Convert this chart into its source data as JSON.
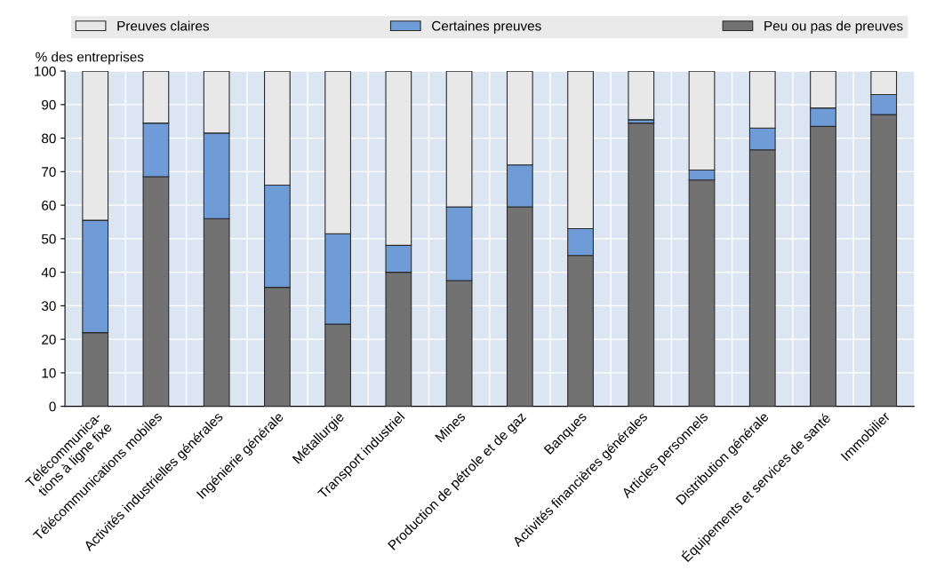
{
  "chart_data": {
    "type": "bar",
    "stacked": true,
    "ylabel": "% des entreprises",
    "categories": [
      "Télécommunica-\ntions à ligne fixe",
      "Télécommunications mobiles",
      "Activités industrielles générales",
      "Ingénierie générale",
      "Métallurgie",
      "Transport industriel",
      "Mines",
      "Production de pétrole et de gaz",
      "Banques",
      "Activités financières générales",
      "Articles personnels",
      "Distribution générale",
      "Équipements et services de santé",
      "Immobilier"
    ],
    "series": [
      {
        "name": "Peu ou pas de preuves",
        "color": "#727272",
        "values": [
          22,
          68.5,
          56,
          35.5,
          24.5,
          40,
          37.5,
          59.5,
          45,
          84.5,
          67.5,
          76.5,
          83.5,
          87
        ]
      },
      {
        "name": "Certaines preuves",
        "color": "#6f9bd6",
        "values": [
          33.5,
          16,
          25.5,
          30.5,
          27,
          8,
          22,
          12.5,
          8,
          1,
          3,
          6.5,
          5.5,
          6
        ]
      },
      {
        "name": "Preuves claires",
        "color": "#e8e8e8",
        "values": [
          44.5,
          15.5,
          18.5,
          34,
          48.5,
          52,
          40.5,
          28,
          47,
          14.5,
          29.5,
          17,
          11,
          7
        ]
      }
    ],
    "ylim": [
      0,
      100
    ],
    "yticks": [
      0,
      10,
      20,
      30,
      40,
      50,
      60,
      70,
      80,
      90,
      100
    ],
    "grid": true,
    "legend": "top"
  }
}
